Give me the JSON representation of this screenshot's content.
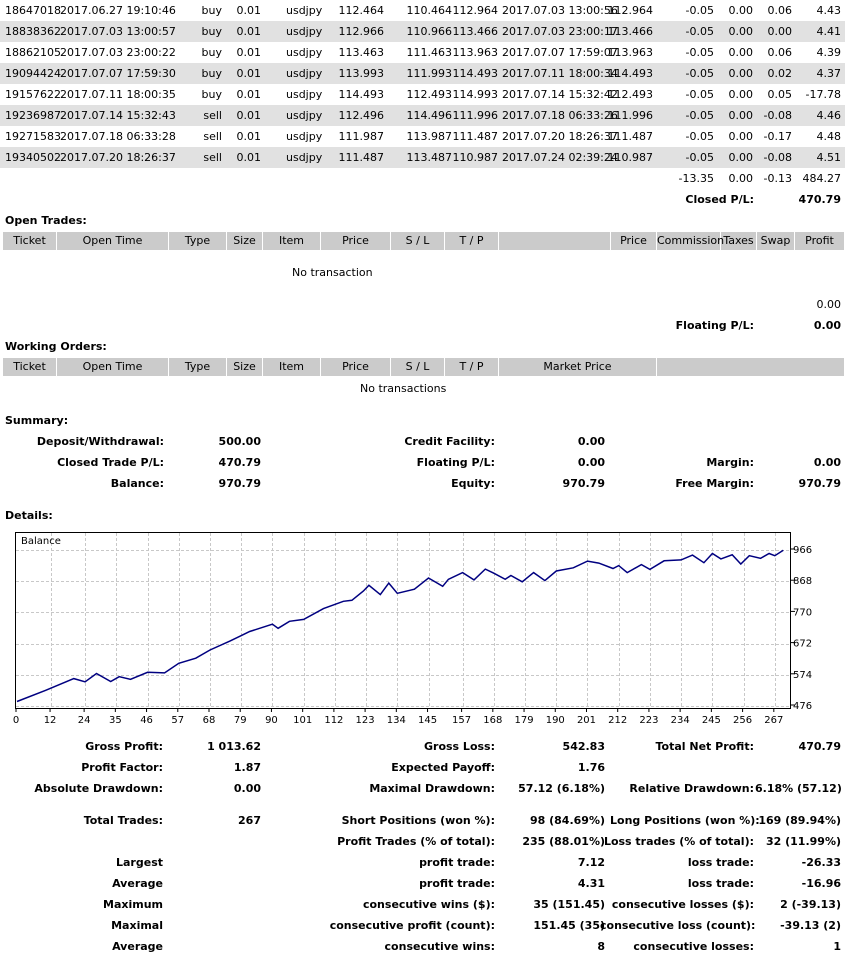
{
  "closed_trades": {
    "rows": [
      {
        "ticket": "18647018",
        "open_time": "2017.06.27 19:10:46",
        "type": "buy",
        "size": "0.01",
        "item": "usdjpy",
        "price": "112.464",
        "sl": "110.464",
        "tp": "112.964",
        "close_time": "2017.07.03 13:00:56",
        "close_price": "112.964",
        "commission": "-0.05",
        "taxes": "0.00",
        "swap": "0.06",
        "profit": "4.43"
      },
      {
        "ticket": "18838362",
        "open_time": "2017.07.03 13:00:57",
        "type": "buy",
        "size": "0.01",
        "item": "usdjpy",
        "price": "112.966",
        "sl": "110.966",
        "tp": "113.466",
        "close_time": "2017.07.03 23:00:17",
        "close_price": "113.466",
        "commission": "-0.05",
        "taxes": "0.00",
        "swap": "0.00",
        "profit": "4.41"
      },
      {
        "ticket": "18862105",
        "open_time": "2017.07.03 23:00:22",
        "type": "buy",
        "size": "0.01",
        "item": "usdjpy",
        "price": "113.463",
        "sl": "111.463",
        "tp": "113.963",
        "close_time": "2017.07.07 17:59:07",
        "close_price": "113.963",
        "commission": "-0.05",
        "taxes": "0.00",
        "swap": "0.06",
        "profit": "4.39"
      },
      {
        "ticket": "19094424",
        "open_time": "2017.07.07 17:59:30",
        "type": "buy",
        "size": "0.01",
        "item": "usdjpy",
        "price": "113.993",
        "sl": "111.993",
        "tp": "114.493",
        "close_time": "2017.07.11 18:00:34",
        "close_price": "114.493",
        "commission": "-0.05",
        "taxes": "0.00",
        "swap": "0.02",
        "profit": "4.37"
      },
      {
        "ticket": "19157622",
        "open_time": "2017.07.11 18:00:35",
        "type": "buy",
        "size": "0.01",
        "item": "usdjpy",
        "price": "114.493",
        "sl": "112.493",
        "tp": "114.993",
        "close_time": "2017.07.14 15:32:42",
        "close_price": "112.493",
        "commission": "-0.05",
        "taxes": "0.00",
        "swap": "0.05",
        "profit": "-17.78"
      },
      {
        "ticket": "19236987",
        "open_time": "2017.07.14 15:32:43",
        "type": "sell",
        "size": "0.01",
        "item": "usdjpy",
        "price": "112.496",
        "sl": "114.496",
        "tp": "111.996",
        "close_time": "2017.07.18 06:33:26",
        "close_price": "111.996",
        "commission": "-0.05",
        "taxes": "0.00",
        "swap": "-0.08",
        "profit": "4.46"
      },
      {
        "ticket": "19271583",
        "open_time": "2017.07.18 06:33:28",
        "type": "sell",
        "size": "0.01",
        "item": "usdjpy",
        "price": "111.987",
        "sl": "113.987",
        "tp": "111.487",
        "close_time": "2017.07.20 18:26:37",
        "close_price": "111.487",
        "commission": "-0.05",
        "taxes": "0.00",
        "swap": "-0.17",
        "profit": "4.48"
      },
      {
        "ticket": "19340502",
        "open_time": "2017.07.20 18:26:37",
        "type": "sell",
        "size": "0.01",
        "item": "usdjpy",
        "price": "111.487",
        "sl": "113.487",
        "tp": "110.987",
        "close_time": "2017.07.24 02:39:24",
        "close_price": "110.987",
        "commission": "-0.05",
        "taxes": "0.00",
        "swap": "-0.08",
        "profit": "4.51"
      }
    ],
    "totals": {
      "commission": "-13.35",
      "taxes": "0.00",
      "swap": "-0.13",
      "profit": "484.27"
    },
    "closed_pl_label": "Closed P/L:",
    "closed_pl_value": "470.79"
  },
  "open_trades": {
    "title": "Open Trades:",
    "headers": [
      "Ticket",
      "Open Time",
      "Type",
      "Size",
      "Item",
      "Price",
      "S / L",
      "T / P",
      "",
      "Price",
      "Commission",
      "Taxes",
      "Swap",
      "Profit"
    ],
    "empty_text": "No transaction",
    "total_profit": "0.00",
    "floating_pl_label": "Floating P/L:",
    "floating_pl_value": "0.00"
  },
  "working_orders": {
    "title": "Working Orders:",
    "headers": [
      "Ticket",
      "Open Time",
      "Type",
      "Size",
      "Item",
      "Price",
      "S / L",
      "T / P",
      "Market Price",
      ""
    ],
    "empty_text": "No transactions"
  },
  "summary": {
    "title": "Summary:",
    "deposit_label": "Deposit/Withdrawal:",
    "deposit_value": "500.00",
    "credit_label": "Credit Facility:",
    "credit_value": "0.00",
    "closed_label": "Closed Trade P/L:",
    "closed_value": "470.79",
    "floating_label": "Floating P/L:",
    "floating_value": "0.00",
    "margin_label": "Margin:",
    "margin_value": "0.00",
    "balance_label": "Balance:",
    "balance_value": "970.79",
    "equity_label": "Equity:",
    "equity_value": "970.79",
    "free_margin_label": "Free Margin:",
    "free_margin_value": "970.79"
  },
  "details": {
    "title": "Details:"
  },
  "chart_data": {
    "type": "line",
    "title": "Balance",
    "x_ticks": [
      "0",
      "12",
      "24",
      "35",
      "46",
      "57",
      "68",
      "79",
      "90",
      "101",
      "112",
      "123",
      "134",
      "145",
      "157",
      "168",
      "179",
      "190",
      "201",
      "212",
      "223",
      "234",
      "245",
      "256",
      "267"
    ],
    "y_ticks": [
      "476",
      "574",
      "672",
      "770",
      "868",
      "966"
    ],
    "xlim": [
      0,
      272
    ],
    "ylim": [
      476,
      966
    ],
    "series": [
      {
        "color": "#000080",
        "x": [
          0,
          10,
          20,
          24,
          28,
          33,
          36,
          40,
          46,
          52,
          57,
          63,
          68,
          75,
          82,
          90,
          92,
          96,
          101,
          108,
          115,
          118,
          122,
          124,
          128,
          131,
          134,
          140,
          145,
          150,
          152,
          157,
          161,
          165,
          168,
          172,
          174,
          178,
          182,
          186,
          190,
          196,
          201,
          205,
          210,
          212,
          215,
          220,
          223,
          228,
          234,
          238,
          242,
          245,
          248,
          252,
          255,
          258,
          262,
          265,
          267,
          270
        ],
        "y": [
          490,
          525,
          562,
          552,
          578,
          553,
          568,
          560,
          582,
          580,
          610,
          626,
          652,
          680,
          710,
          733,
          720,
          742,
          748,
          782,
          805,
          808,
          837,
          855,
          826,
          862,
          830,
          843,
          878,
          852,
          874,
          895,
          872,
          906,
          893,
          874,
          886,
          866,
          895,
          870,
          900,
          910,
          931,
          925,
          908,
          917,
          895,
          920,
          905,
          932,
          935,
          950,
          926,
          955,
          938,
          951,
          922,
          948,
          940,
          955,
          948,
          965
        ]
      }
    ]
  },
  "stats": {
    "gross_profit_label": "Gross Profit:",
    "gross_profit_value": "1 013.62",
    "gross_loss_label": "Gross Loss:",
    "gross_loss_value": "542.83",
    "net_profit_label": "Total Net Profit:",
    "net_profit_value": "470.79",
    "profit_factor_label": "Profit Factor:",
    "profit_factor_value": "1.87",
    "expected_payoff_label": "Expected Payoff:",
    "expected_payoff_value": "1.76",
    "abs_dd_label": "Absolute Drawdown:",
    "abs_dd_value": "0.00",
    "max_dd_label": "Maximal Drawdown:",
    "max_dd_value": "57.12 (6.18%)",
    "rel_dd_label": "Relative Drawdown:",
    "rel_dd_value": "6.18% (57.12)",
    "total_trades_label": "Total Trades:",
    "total_trades_value": "267",
    "short_label": "Short Positions (won %):",
    "short_value": "98 (84.69%)",
    "long_label": "Long Positions (won %):",
    "long_value": "169 (89.94%)",
    "profit_trades_label": "Profit Trades (% of total):",
    "profit_trades_value": "235 (88.01%)",
    "loss_trades_label": "Loss trades (% of total):",
    "loss_trades_value": "32 (11.99%)",
    "largest_label": "Largest",
    "largest_profit_label": "profit trade:",
    "largest_profit_value": "7.12",
    "largest_loss_label": "loss trade:",
    "largest_loss_value": "-26.33",
    "average_label": "Average",
    "average_profit_label": "profit trade:",
    "average_profit_value": "4.31",
    "average_loss_label": "loss trade:",
    "average_loss_value": "-16.96",
    "maximum_label": "Maximum",
    "max_wins_label": "consecutive wins ($):",
    "max_wins_value": "35 (151.45)",
    "max_losses_label": "consecutive losses ($):",
    "max_losses_value": "2 (-39.13)",
    "maximal_label": "Maximal",
    "maximal_profit_label": "consecutive profit (count):",
    "maximal_profit_value": "151.45 (35)",
    "maximal_loss_label": "consecutive loss (count):",
    "maximal_loss_value": "-39.13 (2)",
    "average2_label": "Average",
    "avg_wins_label": "consecutive wins:",
    "avg_wins_value": "8",
    "avg_losses_label": "consecutive losses:",
    "avg_losses_value": "1"
  }
}
